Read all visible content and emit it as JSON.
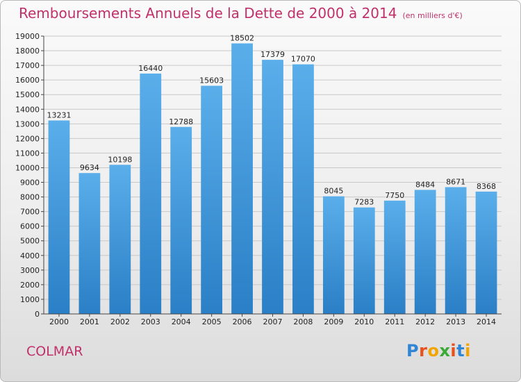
{
  "title": "Remboursements Annuels de la Dette de 2000 à 2014",
  "unit": "(en milliers d'€)",
  "city": "COLMAR",
  "logo": "Proxiti",
  "colors": {
    "title": "#c0306a",
    "bar_top": "#5aaeea",
    "bar_bottom": "#2a7fc6",
    "grid": "#c8c8c8"
  },
  "chart_data": {
    "type": "bar",
    "categories": [
      "2000",
      "2001",
      "2002",
      "2003",
      "2004",
      "2005",
      "2006",
      "2007",
      "2008",
      "2009",
      "2010",
      "2011",
      "2012",
      "2013",
      "2014"
    ],
    "values": [
      13231,
      9634,
      10198,
      16440,
      12788,
      15603,
      18502,
      17379,
      17070,
      8045,
      7283,
      7750,
      8484,
      8671,
      8368
    ],
    "ylim": [
      0,
      19000
    ],
    "ytick_step": 1000,
    "grid": true,
    "legend": "none"
  }
}
